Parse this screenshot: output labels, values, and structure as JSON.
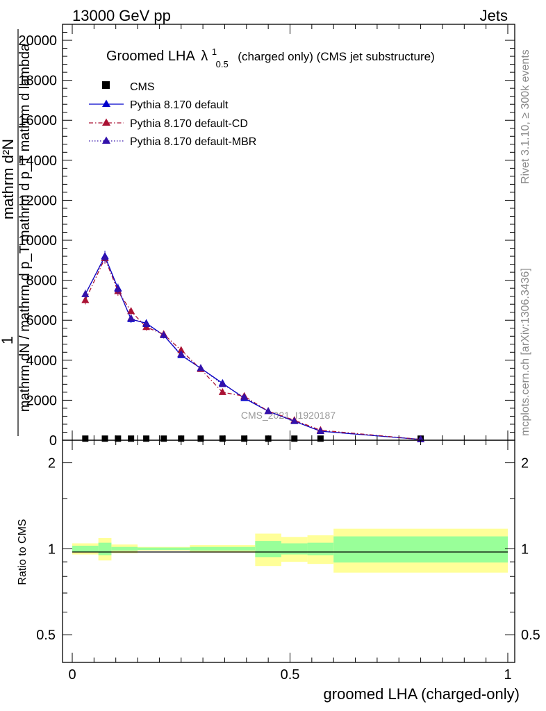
{
  "header": {
    "energy": "13000 GeV pp",
    "process": "Jets"
  },
  "side_labels": {
    "rivet": "Rivet 3.1.10, ≥ 300k events",
    "mcplots": "mcplots.cern.ch [arXiv:1306.3436]"
  },
  "watermark": "CMS_2021_I1920187",
  "chart_data": [
    {
      "type": "line",
      "title_main": "Groomed LHA",
      "title_lambda": "λ",
      "title_sup": "1",
      "title_sub": "0.5",
      "title_rest": "(charged only) (CMS jet substructure)",
      "ylabel_numerator": "1",
      "ylabel_denominator": "mathrm dN / mathrm d p_T mathrm d p_T mathrm d lambda",
      "ylabel_numerator_top": "mathrm d²N",
      "ylim": [
        0,
        20800
      ],
      "yticks": [
        0,
        2000,
        4000,
        6000,
        8000,
        10000,
        12000,
        14000,
        16000,
        18000,
        20000
      ],
      "xlim": [
        -0.02,
        1.02
      ],
      "legend": [
        {
          "name": "CMS",
          "color": "#000000",
          "style": "square"
        },
        {
          "name": "Pythia 8.170 default",
          "color": "#0000cc",
          "style": "solid"
        },
        {
          "name": "Pythia 8.170 default-CD",
          "color": "#aa1133",
          "style": "dashdot"
        },
        {
          "name": "Pythia 8.170 default-MBR",
          "color": "#3311aa",
          "style": "dotted"
        }
      ],
      "x": [
        0.03,
        0.075,
        0.105,
        0.135,
        0.17,
        0.21,
        0.25,
        0.295,
        0.345,
        0.395,
        0.45,
        0.51,
        0.57,
        0.8
      ],
      "series": [
        {
          "name": "CMS",
          "values": [
            45,
            45,
            45,
            45,
            45,
            45,
            45,
            45,
            45,
            45,
            45,
            45,
            45,
            45
          ]
        },
        {
          "name": "Pythia 8.170 default",
          "values": [
            7300,
            9200,
            7600,
            6050,
            5850,
            5250,
            4250,
            3600,
            2850,
            2100,
            1450,
            950,
            450,
            40
          ]
        },
        {
          "name": "Pythia 8.170 default-CD",
          "values": [
            7000,
            9100,
            7450,
            6450,
            5650,
            5300,
            4500,
            3550,
            2400,
            2200,
            1450,
            1000,
            500,
            40
          ]
        },
        {
          "name": "Pythia 8.170 default-MBR",
          "values": [
            7300,
            9150,
            7550,
            6100,
            5800,
            5250,
            4300,
            3600,
            2800,
            2150,
            1450,
            950,
            450,
            40
          ]
        }
      ]
    },
    {
      "type": "area",
      "ylabel": "Ratio to CMS",
      "xlabel": "groomed LHA (charged-only)",
      "ylim": [
        0.4,
        2.4
      ],
      "yticks": [
        0.5,
        1,
        2
      ],
      "ytick_labels": [
        "0.5",
        "1",
        "2"
      ],
      "xticks": [
        0,
        0.5,
        1
      ],
      "xtick_labels": [
        "0",
        "0.5",
        "1"
      ],
      "bins": [
        {
          "lo": 0.0,
          "hi": 0.06,
          "y_in": 0.025,
          "y_out": 0.045
        },
        {
          "lo": 0.06,
          "hi": 0.09,
          "y_in": 0.05,
          "y_out": 0.09
        },
        {
          "lo": 0.09,
          "hi": 0.15,
          "y_in": 0.015,
          "y_out": 0.035
        },
        {
          "lo": 0.15,
          "hi": 0.27,
          "y_in": 0.01,
          "y_out": 0.015
        },
        {
          "lo": 0.27,
          "hi": 0.42,
          "y_in": 0.015,
          "y_out": 0.03
        },
        {
          "lo": 0.42,
          "hi": 0.48,
          "y_in": 0.065,
          "y_out": 0.13
        },
        {
          "lo": 0.48,
          "hi": 0.54,
          "y_in": 0.045,
          "y_out": 0.1
        },
        {
          "lo": 0.54,
          "hi": 0.6,
          "y_in": 0.05,
          "y_out": 0.115
        },
        {
          "lo": 0.6,
          "hi": 1.0,
          "y_in": 0.105,
          "y_out": 0.175
        }
      ],
      "colors": {
        "outer": "#ffff99",
        "inner": "#99ff99",
        "line": "#000000"
      }
    }
  ]
}
